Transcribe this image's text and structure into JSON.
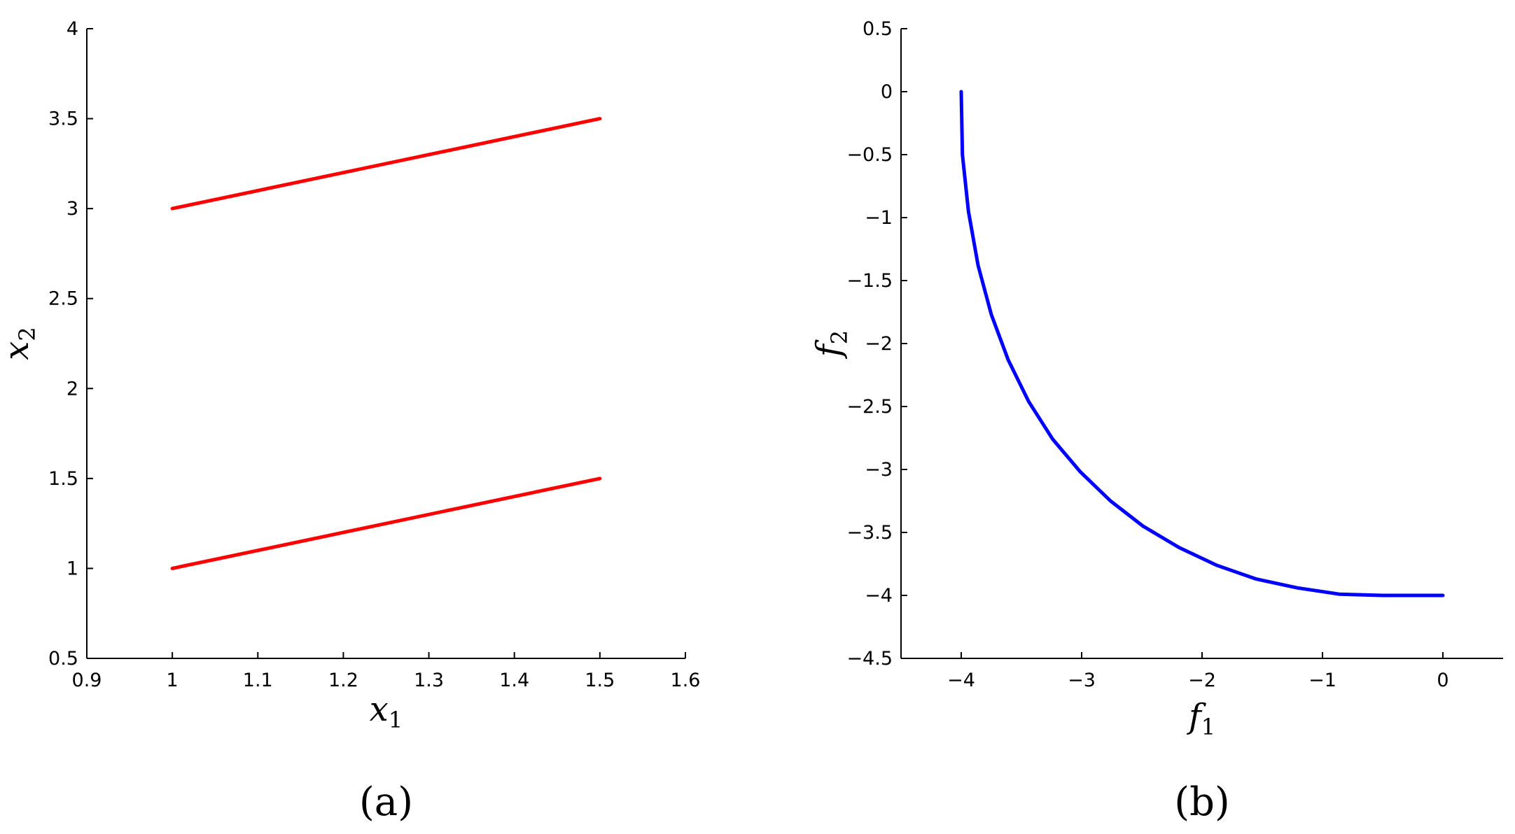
{
  "chart_data": [
    {
      "type": "line",
      "panel_label": "(a)",
      "xlabel": {
        "base": "x",
        "sub": "1"
      },
      "ylabel": {
        "base": "x",
        "sub": "2"
      },
      "xlim": [
        0.9,
        1.6
      ],
      "ylim": [
        0.5,
        4
      ],
      "xticks": [
        0.9,
        1,
        1.1,
        1.2,
        1.3,
        1.4,
        1.5,
        1.6
      ],
      "xtick_labels": [
        "0.9",
        "1",
        "1.1",
        "1.2",
        "1.3",
        "1.4",
        "1.5",
        "1.6"
      ],
      "yticks": [
        0.5,
        1,
        1.5,
        2,
        2.5,
        3,
        3.5,
        4
      ],
      "ytick_labels": [
        "0.5",
        "1",
        "1.5",
        "2",
        "2.5",
        "3",
        "3.5",
        "4"
      ],
      "color": "#ff0000",
      "series": [
        {
          "x": [
            1,
            1.5
          ],
          "y": [
            1,
            1.5
          ]
        },
        {
          "x": [
            1,
            1.5
          ],
          "y": [
            3,
            3.5
          ]
        }
      ]
    },
    {
      "type": "line",
      "panel_label": "(b)",
      "xlabel": {
        "base": "f",
        "sub": "1"
      },
      "ylabel": {
        "base": "f",
        "sub": "2"
      },
      "xlim": [
        -4.5,
        0.5
      ],
      "ylim": [
        -4.5,
        0.5
      ],
      "xticks": [
        -4,
        -3,
        -2,
        -1,
        0
      ],
      "xtick_labels": [
        "−4",
        "−3",
        "−2",
        "−1",
        "0"
      ],
      "yticks": [
        0.5,
        0,
        -0.5,
        -1,
        -1.5,
        -2,
        -2.5,
        -3,
        -3.5,
        -4,
        -4.5
      ],
      "ytick_labels": [
        "0.5",
        "0",
        "−0.5",
        "−1",
        "−1.5",
        "−2",
        "−2.5",
        "−3",
        "−3.5",
        "−4",
        "−4.5"
      ],
      "color": "#0000ff",
      "series": [
        {
          "x": [
            -4,
            -3.99,
            -3.94,
            -3.86,
            -3.75,
            -3.61,
            -3.44,
            -3.24,
            -3.01,
            -2.76,
            -2.49,
            -2.19,
            -1.88,
            -1.55,
            -1.21,
            -0.86,
            -0.5,
            -0.13,
            0
          ],
          "y": [
            0,
            -0.5,
            -0.95,
            -1.38,
            -1.77,
            -2.13,
            -2.46,
            -2.76,
            -3.02,
            -3.25,
            -3.45,
            -3.62,
            -3.76,
            -3.87,
            -3.94,
            -3.99,
            -4,
            -4,
            -4
          ]
        }
      ]
    }
  ]
}
